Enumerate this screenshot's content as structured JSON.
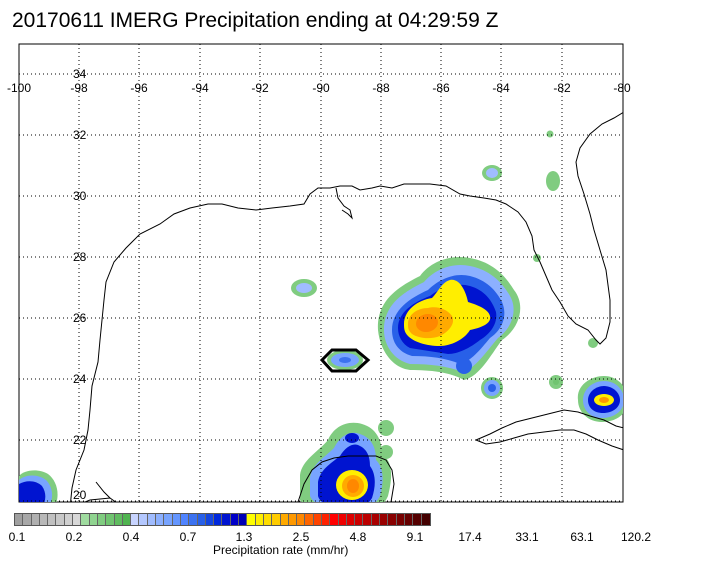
{
  "title": "20170611 IMERG Precipitation ending at 04:29:59 Z",
  "map": {
    "lon_labels": [
      "-100",
      "-98",
      "-96",
      "-94",
      "-92",
      "-90",
      "-88",
      "-86",
      "-84",
      "-82",
      "-80"
    ],
    "lat_labels": [
      "34",
      "32",
      "30",
      "28",
      "26",
      "24",
      "22",
      "20"
    ],
    "gridlines": "dotted",
    "region": "Gulf of Mexico"
  },
  "colorbar": {
    "title": "Precipitation rate (mm/hr)",
    "tick_labels": [
      "0.1",
      "0.2",
      "0.4",
      "0.7",
      "1.3",
      "2.5",
      "4.8",
      "9.1",
      "17.4",
      "33.1",
      "63.1",
      "120.2"
    ],
    "colors": [
      "#a0a0a0",
      "#a8a8a8",
      "#b0b0b0",
      "#b8b8b8",
      "#c0c0c0",
      "#c8c8c8",
      "#d0d0d0",
      "#d8d8d8",
      "#a0dca0",
      "#90d490",
      "#80cc80",
      "#70c470",
      "#60bc60",
      "#50b450",
      "#c8d4ff",
      "#b4c8ff",
      "#a0bcff",
      "#8cb0ff",
      "#78a4ff",
      "#6496ff",
      "#5084ff",
      "#3c72f0",
      "#2860e8",
      "#1446e0",
      "#0028dc",
      "#0014d0",
      "#0000c8",
      "#0000b4",
      "#ffff00",
      "#ffee00",
      "#ffdd00",
      "#ffcc00",
      "#ffaa00",
      "#ff9900",
      "#ff8800",
      "#ff6600",
      "#ff4400",
      "#ff2200",
      "#ff0000",
      "#ee0000",
      "#dd0000",
      "#cc0000",
      "#bb0000",
      "#aa0000",
      "#990000",
      "#880000",
      "#770000",
      "#660000",
      "#550000",
      "#440000"
    ]
  }
}
